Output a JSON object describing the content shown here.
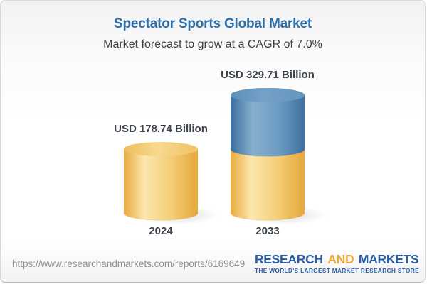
{
  "header": {
    "title": "Spectator Sports Global Market",
    "subtitle": "Market forecast to grow at a CAGR of 7.0%",
    "accent_blue": "#2d6fa8"
  },
  "chart_data": {
    "type": "bar",
    "variant": "3d-cylinder-stacked",
    "title": "Spectator Sports Global Market",
    "subtitle": "Market forecast to grow at a CAGR of 7.0%",
    "unit": "USD Billion",
    "cagr": "7.0%",
    "categories": [
      "2024",
      "2033"
    ],
    "values": [
      178.74,
      329.71
    ],
    "ylim": [
      0,
      360
    ],
    "grid": false,
    "legend": false,
    "bars": [
      {
        "year": "2024",
        "value": 178.74,
        "label": "USD 178.74 Billion",
        "segments": [
          {
            "value": 178.74,
            "color": "gold"
          }
        ]
      },
      {
        "year": "2033",
        "value": 329.71,
        "label": "USD 329.71 Billion",
        "segments": [
          {
            "value": 178.74,
            "color": "gold"
          },
          {
            "value": 150.97,
            "color": "blue"
          }
        ]
      }
    ],
    "colors": {
      "gold_edge_left": "#e9aa3e",
      "gold_light": "#fbe7ad",
      "gold_mid": "#f4cf7a",
      "gold_edge_right": "#e5a83c",
      "gold_top_left": "#edbd5c",
      "gold_top_light": "#f8d98c",
      "gold_top_right": "#efc266",
      "gold_rim": "#d49a35",
      "blue_edge_left": "#3b6fa0",
      "blue_light": "#86afcd",
      "blue_mid": "#6d9cc1",
      "blue_edge_right": "#3d70a0",
      "blue_top_left": "#5d8fb7",
      "blue_top_light": "#75a1c6",
      "blue_top_right": "#6595bc",
      "blue_rim": "#2f5f8f"
    }
  },
  "footer": {
    "url": "https://www.researchandmarkets.com/reports/6169649",
    "logo": {
      "research": "RESEARCH",
      "and": "AND",
      "markets": "MARKETS",
      "tagline": "THE WORLD'S LARGEST MARKET RESEARCH STORE",
      "blue": "#2a5ea6",
      "gold": "#efa937"
    }
  }
}
